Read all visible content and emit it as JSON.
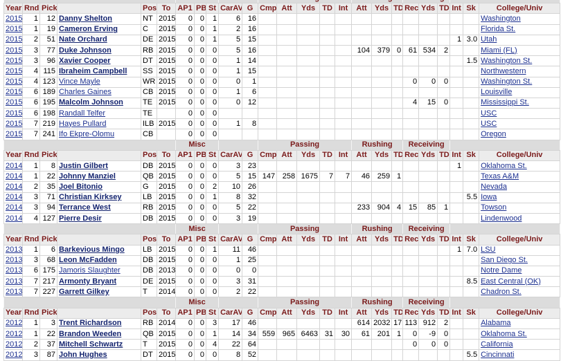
{
  "groups": [
    "Misc",
    "Passing",
    "Rushing",
    "Receiving"
  ],
  "columns": [
    "Year",
    "Rnd",
    "Pick",
    null,
    "Pos",
    "To",
    "AP1",
    "PB",
    "St",
    "CarAV",
    "G",
    "Cmp",
    "Att",
    "Yds",
    "TD",
    "Int",
    "Att",
    "Yds",
    "TD",
    "Rec",
    "Yds",
    "TD",
    "Int",
    "Sk",
    "College/Univ"
  ],
  "sections": [
    {
      "rows": [
        {
          "bold": true,
          "cells": [
            "2015",
            "1",
            "12",
            "Danny Shelton",
            "NT",
            "2015",
            "0",
            "0",
            "1",
            "6",
            "16",
            null,
            null,
            null,
            null,
            null,
            null,
            null,
            null,
            null,
            null,
            null,
            null,
            null,
            "Washington"
          ]
        },
        {
          "bold": true,
          "cells": [
            "2015",
            "1",
            "19",
            "Cameron Erving",
            "C",
            "2015",
            "0",
            "0",
            "1",
            "2",
            "16",
            null,
            null,
            null,
            null,
            null,
            null,
            null,
            null,
            null,
            null,
            null,
            null,
            null,
            "Florida St."
          ]
        },
        {
          "bold": true,
          "cells": [
            "2015",
            "2",
            "51",
            "Nate Orchard",
            "DE",
            "2015",
            "0",
            "0",
            "1",
            "5",
            "15",
            null,
            null,
            null,
            null,
            null,
            null,
            null,
            null,
            null,
            null,
            null,
            "1",
            "3.0",
            "Utah"
          ]
        },
        {
          "bold": true,
          "cells": [
            "2015",
            "3",
            "77",
            "Duke Johnson",
            "RB",
            "2015",
            "0",
            "0",
            "0",
            "5",
            "16",
            null,
            null,
            null,
            null,
            null,
            "104",
            "379",
            "0",
            "61",
            "534",
            "2",
            null,
            null,
            "Miami (FL)"
          ]
        },
        {
          "bold": true,
          "cells": [
            "2015",
            "3",
            "96",
            "Xavier Cooper",
            "DT",
            "2015",
            "0",
            "0",
            "0",
            "1",
            "14",
            null,
            null,
            null,
            null,
            null,
            null,
            null,
            null,
            null,
            null,
            null,
            null,
            "1.5",
            "Washington St."
          ]
        },
        {
          "bold": true,
          "cells": [
            "2015",
            "4",
            "115",
            "Ibraheim Campbell",
            "SS",
            "2015",
            "0",
            "0",
            "0",
            "1",
            "15",
            null,
            null,
            null,
            null,
            null,
            null,
            null,
            null,
            null,
            null,
            null,
            null,
            null,
            "Northwestern"
          ]
        },
        {
          "bold": false,
          "cells": [
            "2015",
            "4",
            "123",
            "Vince Mayle",
            "WR",
            "2015",
            "0",
            "0",
            "0",
            "0",
            "1",
            null,
            null,
            null,
            null,
            null,
            null,
            null,
            null,
            "0",
            "0",
            "0",
            null,
            null,
            "Washington St."
          ]
        },
        {
          "bold": false,
          "cells": [
            "2015",
            "6",
            "189",
            "Charles Gaines",
            "CB",
            "2015",
            "0",
            "0",
            "0",
            "1",
            "6",
            null,
            null,
            null,
            null,
            null,
            null,
            null,
            null,
            null,
            null,
            null,
            null,
            null,
            "Louisville"
          ]
        },
        {
          "bold": true,
          "cells": [
            "2015",
            "6",
            "195",
            "Malcolm Johnson",
            "TE",
            "2015",
            "0",
            "0",
            "0",
            "0",
            "12",
            null,
            null,
            null,
            null,
            null,
            null,
            null,
            null,
            "4",
            "15",
            "0",
            null,
            null,
            "Mississippi St."
          ]
        },
        {
          "bold": false,
          "cells": [
            "2015",
            "6",
            "198",
            "Randall Telfer",
            "TE",
            null,
            "0",
            "0",
            "0",
            null,
            null,
            null,
            null,
            null,
            null,
            null,
            null,
            null,
            null,
            null,
            null,
            null,
            null,
            null,
            "USC"
          ]
        },
        {
          "bold": false,
          "cells": [
            "2015",
            "7",
            "219",
            "Hayes Pullard",
            "ILB",
            "2015",
            "0",
            "0",
            "0",
            "1",
            "8",
            null,
            null,
            null,
            null,
            null,
            null,
            null,
            null,
            null,
            null,
            null,
            null,
            null,
            "USC"
          ]
        },
        {
          "bold": false,
          "cells": [
            "2015",
            "7",
            "241",
            "Ifo Ekpre-Olomu",
            "CB",
            null,
            "0",
            "0",
            "0",
            null,
            null,
            null,
            null,
            null,
            null,
            null,
            null,
            null,
            null,
            null,
            null,
            null,
            null,
            null,
            "Oregon"
          ]
        }
      ]
    },
    {
      "rows": [
        {
          "bold": true,
          "cells": [
            "2014",
            "1",
            "8",
            "Justin Gilbert",
            "DB",
            "2015",
            "0",
            "0",
            "0",
            "3",
            "23",
            null,
            null,
            null,
            null,
            null,
            null,
            null,
            null,
            null,
            null,
            null,
            "1",
            null,
            "Oklahoma St."
          ]
        },
        {
          "bold": true,
          "cells": [
            "2014",
            "1",
            "22",
            "Johnny Manziel",
            "QB",
            "2015",
            "0",
            "0",
            "0",
            "5",
            "15",
            "147",
            "258",
            "1675",
            "7",
            "7",
            "46",
            "259",
            "1",
            null,
            null,
            null,
            null,
            null,
            "Texas A&M"
          ]
        },
        {
          "bold": true,
          "cells": [
            "2014",
            "2",
            "35",
            "Joel Bitonio",
            "G",
            "2015",
            "0",
            "0",
            "2",
            "10",
            "26",
            null,
            null,
            null,
            null,
            null,
            null,
            null,
            null,
            null,
            null,
            null,
            null,
            null,
            "Nevada"
          ]
        },
        {
          "bold": true,
          "cells": [
            "2014",
            "3",
            "71",
            "Christian Kirksey",
            "LB",
            "2015",
            "0",
            "0",
            "1",
            "8",
            "32",
            null,
            null,
            null,
            null,
            null,
            null,
            null,
            null,
            null,
            null,
            null,
            null,
            "5.5",
            "Iowa"
          ]
        },
        {
          "bold": true,
          "cells": [
            "2014",
            "3",
            "94",
            "Terrance West",
            "RB",
            "2015",
            "0",
            "0",
            "0",
            "5",
            "22",
            null,
            null,
            null,
            null,
            null,
            "233",
            "904",
            "4",
            "15",
            "85",
            "1",
            null,
            null,
            "Towson"
          ]
        },
        {
          "bold": true,
          "cells": [
            "2014",
            "4",
            "127",
            "Pierre Desir",
            "DB",
            "2015",
            "0",
            "0",
            "0",
            "3",
            "19",
            null,
            null,
            null,
            null,
            null,
            null,
            null,
            null,
            null,
            null,
            null,
            null,
            null,
            "Lindenwood"
          ]
        }
      ]
    },
    {
      "rows": [
        {
          "bold": true,
          "cells": [
            "2013",
            "1",
            "6",
            "Barkevious Mingo",
            "LB",
            "2015",
            "0",
            "0",
            "1",
            "11",
            "46",
            null,
            null,
            null,
            null,
            null,
            null,
            null,
            null,
            null,
            null,
            null,
            "1",
            "7.0",
            "LSU"
          ]
        },
        {
          "bold": true,
          "cells": [
            "2013",
            "3",
            "68",
            "Leon McFadden",
            "DB",
            "2015",
            "0",
            "0",
            "0",
            "1",
            "25",
            null,
            null,
            null,
            null,
            null,
            null,
            null,
            null,
            null,
            null,
            null,
            null,
            null,
            "San Diego St."
          ]
        },
        {
          "bold": false,
          "cells": [
            "2013",
            "6",
            "175",
            "Jamoris Slaughter",
            "DB",
            "2013",
            "0",
            "0",
            "0",
            "0",
            "0",
            null,
            null,
            null,
            null,
            null,
            null,
            null,
            null,
            null,
            null,
            null,
            null,
            null,
            "Notre Dame"
          ]
        },
        {
          "bold": true,
          "cells": [
            "2013",
            "7",
            "217",
            "Armonty Bryant",
            "DE",
            "2015",
            "0",
            "0",
            "0",
            "3",
            "31",
            null,
            null,
            null,
            null,
            null,
            null,
            null,
            null,
            null,
            null,
            null,
            null,
            "8.5",
            "East Central (OK)"
          ]
        },
        {
          "bold": true,
          "cells": [
            "2013",
            "7",
            "227",
            "Garrett Gilkey",
            "T",
            "2014",
            "0",
            "0",
            "0",
            "2",
            "22",
            null,
            null,
            null,
            null,
            null,
            null,
            null,
            null,
            null,
            null,
            null,
            null,
            null,
            "Chadron St."
          ]
        }
      ]
    },
    {
      "rows": [
        {
          "bold": true,
          "cells": [
            "2012",
            "1",
            "3",
            "Trent Richardson",
            "RB",
            "2014",
            "0",
            "0",
            "3",
            "17",
            "46",
            null,
            null,
            null,
            null,
            null,
            "614",
            "2032",
            "17",
            "113",
            "912",
            "2",
            null,
            null,
            "Alabama"
          ]
        },
        {
          "bold": true,
          "cells": [
            "2012",
            "1",
            "22",
            "Brandon Weeden",
            "QB",
            "2015",
            "0",
            "0",
            "1",
            "14",
            "34",
            "559",
            "965",
            "6463",
            "31",
            "30",
            "61",
            "201",
            "1",
            "0",
            "-9",
            "0",
            null,
            null,
            "Oklahoma St."
          ]
        },
        {
          "bold": true,
          "cells": [
            "2012",
            "2",
            "37",
            "Mitchell Schwartz",
            "T",
            "2015",
            "0",
            "0",
            "4",
            "22",
            "64",
            null,
            null,
            null,
            null,
            null,
            null,
            null,
            null,
            "0",
            "0",
            "0",
            null,
            null,
            "California"
          ]
        },
        {
          "bold": true,
          "cells": [
            "2012",
            "3",
            "87",
            "John Hughes",
            "DT",
            "2015",
            "0",
            "0",
            "0",
            "8",
            "52",
            null,
            null,
            null,
            null,
            null,
            null,
            null,
            null,
            null,
            null,
            null,
            null,
            "5.5",
            "Cincinnati"
          ]
        }
      ]
    }
  ]
}
